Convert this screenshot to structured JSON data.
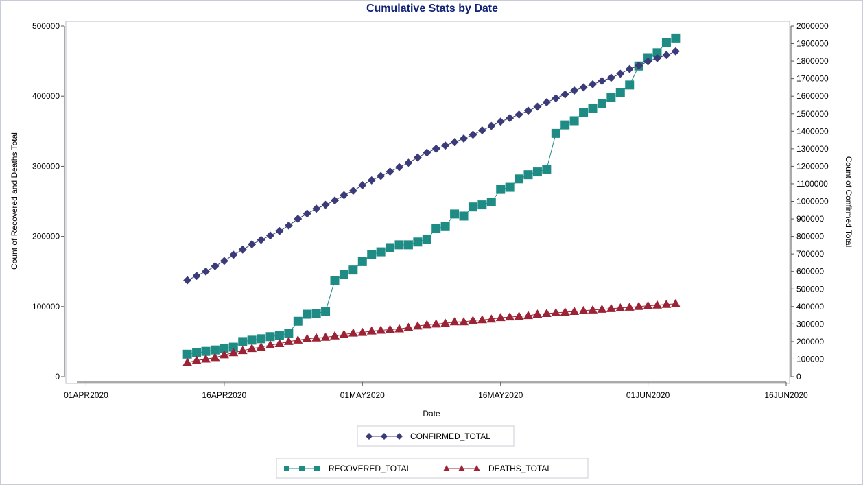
{
  "chart_data": {
    "type": "line",
    "title": "Cumulative Stats by Date",
    "xlabel": "Date",
    "ylabel_left": "Count of Recovered and Deaths Total",
    "ylabel_right": "Count of Confirmed Total",
    "x_ticks": [
      "01APR2020",
      "16APR2020",
      "01MAY2020",
      "16MAY2020",
      "01JUN2020",
      "16JUN2020"
    ],
    "y_left_ticks": [
      "0",
      "100000",
      "200000",
      "300000",
      "400000",
      "500000"
    ],
    "y_right_ticks": [
      "0",
      "100000",
      "200000",
      "300000",
      "400000",
      "500000",
      "600000",
      "700000",
      "800000",
      "900000",
      "1000000",
      "1100000",
      "1200000",
      "1300000",
      "1400000",
      "1500000",
      "1600000",
      "1700000",
      "1800000",
      "1900000",
      "2000000"
    ],
    "xlim": [
      "2020-03-31",
      "2020-06-16"
    ],
    "ylim_left": [
      0,
      500000
    ],
    "ylim_right": [
      0,
      2000000
    ],
    "x": [
      "2020-04-12",
      "2020-04-13",
      "2020-04-14",
      "2020-04-15",
      "2020-04-16",
      "2020-04-17",
      "2020-04-18",
      "2020-04-19",
      "2020-04-20",
      "2020-04-21",
      "2020-04-22",
      "2020-04-23",
      "2020-04-24",
      "2020-04-25",
      "2020-04-26",
      "2020-04-27",
      "2020-04-28",
      "2020-04-29",
      "2020-04-30",
      "2020-05-01",
      "2020-05-02",
      "2020-05-03",
      "2020-05-04",
      "2020-05-05",
      "2020-05-06",
      "2020-05-07",
      "2020-05-08",
      "2020-05-09",
      "2020-05-10",
      "2020-05-11",
      "2020-05-12",
      "2020-05-13",
      "2020-05-14",
      "2020-05-15",
      "2020-05-16",
      "2020-05-17",
      "2020-05-18",
      "2020-05-19",
      "2020-05-20",
      "2020-05-21",
      "2020-05-22",
      "2020-05-23",
      "2020-05-24",
      "2020-05-25",
      "2020-05-26",
      "2020-05-27",
      "2020-05-28",
      "2020-05-29",
      "2020-05-30",
      "2020-05-31",
      "2020-06-01",
      "2020-06-02",
      "2020-06-03",
      "2020-06-04"
    ],
    "series": [
      {
        "name": "CONFIRMED_TOTAL",
        "axis": "right",
        "marker": "diamond",
        "color": "#3b3b7a",
        "values": [
          550000,
          575000,
          600000,
          630000,
          660000,
          695000,
          725000,
          755000,
          780000,
          805000,
          830000,
          862000,
          900000,
          930000,
          958000,
          980000,
          1005000,
          1035000,
          1060000,
          1092000,
          1120000,
          1145000,
          1170000,
          1195000,
          1220000,
          1250000,
          1278000,
          1300000,
          1318000,
          1338000,
          1358000,
          1380000,
          1405000,
          1430000,
          1455000,
          1475000,
          1495000,
          1517000,
          1540000,
          1565000,
          1588000,
          1610000,
          1632000,
          1650000,
          1668000,
          1687000,
          1705000,
          1728000,
          1755000,
          1775000,
          1798000,
          1817000,
          1835000,
          1856000
        ]
      },
      {
        "name": "RECOVERED_TOTAL",
        "axis": "left",
        "marker": "square",
        "color": "#1e8c84",
        "values": [
          32000,
          34000,
          36000,
          38000,
          40000,
          42000,
          50000,
          52000,
          54000,
          57000,
          59000,
          62000,
          79000,
          89000,
          90000,
          93000,
          137000,
          146000,
          152000,
          164000,
          174000,
          178000,
          184000,
          188000,
          188000,
          192000,
          196000,
          211000,
          214000,
          232000,
          229000,
          242000,
          245000,
          249000,
          267000,
          270000,
          282000,
          288000,
          292000,
          296000,
          347000,
          359000,
          365000,
          377000,
          383000,
          389000,
          398000,
          405000,
          416000,
          443000,
          455000,
          462000,
          477000,
          483000
        ]
      },
      {
        "name": "DEATHS_TOTAL",
        "axis": "left",
        "marker": "triangle",
        "color": "#9b2335",
        "values": [
          20000,
          23000,
          25000,
          27000,
          31000,
          34000,
          37000,
          40000,
          42000,
          45000,
          47000,
          50000,
          52000,
          54000,
          55000,
          56000,
          58000,
          60000,
          62000,
          63000,
          65000,
          66000,
          67000,
          68000,
          70000,
          72000,
          74000,
          75000,
          76000,
          78000,
          78000,
          80000,
          81000,
          82000,
          84000,
          85000,
          86000,
          87000,
          89000,
          90000,
          91000,
          92000,
          93000,
          94000,
          95000,
          96000,
          97000,
          98000,
          99000,
          100000,
          101000,
          102000,
          103000,
          104000
        ]
      }
    ],
    "legend": [
      {
        "group": "top",
        "entries": [
          "CONFIRMED_TOTAL"
        ]
      },
      {
        "group": "bottom",
        "entries": [
          "RECOVERED_TOTAL",
          "DEATHS_TOTAL"
        ]
      }
    ],
    "grid": false
  }
}
